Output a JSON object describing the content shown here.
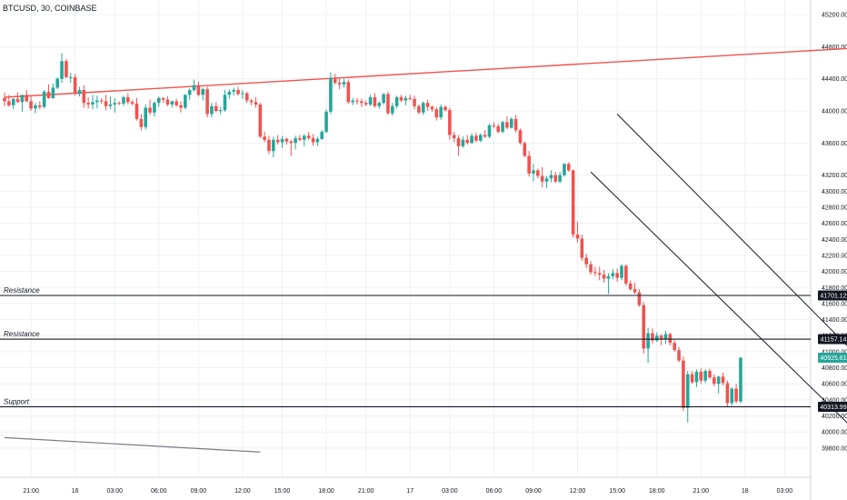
{
  "header": {
    "symbol": "BTCUSD, 30, COINBASE"
  },
  "chart_data": {
    "type": "candlestick",
    "title": "BTCUSD, 30, COINBASE",
    "price_axis": {
      "ticks": [
        45200,
        44800,
        44400,
        44000,
        43600,
        43200,
        43000,
        42800,
        42600,
        42400,
        42200,
        42000,
        41800,
        41600,
        41400,
        41200,
        41000,
        40800,
        40600,
        40400,
        40200,
        40000,
        39800
      ],
      "tick_labels": [
        "45200.00",
        "44800.00",
        "44400.00",
        "44000.00",
        "43600.00",
        "43200.00",
        "43000.00",
        "42800.00",
        "42600.00",
        "42400.00",
        "42200.00",
        "42000.00",
        "41800.00",
        "41600.00",
        "41400.00",
        "41200.00",
        "41000.00",
        "40800.00",
        "40600.00",
        "40400.00",
        "40200.00",
        "40000.00",
        "39800.00"
      ]
    },
    "time_axis": {
      "labels": [
        "21:00",
        "16",
        "03:00",
        "06:00",
        "09:00",
        "12:00",
        "15:00",
        "18:00",
        "21:00",
        "17",
        "03:00",
        "06:00",
        "09:00",
        "12:00",
        "15:00",
        "18:00",
        "21:00",
        "18",
        "03:00"
      ],
      "bar_index": [
        6,
        16,
        25,
        35,
        44,
        54,
        63,
        73,
        82,
        92,
        101,
        111,
        120,
        130,
        139,
        148,
        158,
        168,
        177
      ]
    },
    "colors": {
      "up": "#26a69a",
      "down": "#ef5350",
      "trendline": "#ef5350",
      "channel": "#131722",
      "level": "#131722"
    },
    "candles": [
      [
        44160,
        44230,
        44060,
        44120
      ],
      [
        44120,
        44200,
        44050,
        44070
      ],
      [
        44070,
        44160,
        44020,
        44150
      ],
      [
        44150,
        44230,
        44100,
        44110
      ],
      [
        44110,
        44200,
        43990,
        44200
      ],
      [
        44200,
        44260,
        44110,
        44120
      ],
      [
        44120,
        44180,
        44000,
        44030
      ],
      [
        44030,
        44100,
        43970,
        44070
      ],
      [
        44070,
        44120,
        44020,
        44050
      ],
      [
        44050,
        44260,
        44030,
        44240
      ],
      [
        44240,
        44330,
        44150,
        44160
      ],
      [
        44160,
        44340,
        44150,
        44290
      ],
      [
        44290,
        44420,
        44270,
        44400
      ],
      [
        44400,
        44720,
        44350,
        44620
      ],
      [
        44620,
        44650,
        44410,
        44420
      ],
      [
        44420,
        44470,
        44350,
        44420
      ],
      [
        44420,
        44460,
        44190,
        44210
      ],
      [
        44210,
        44300,
        44180,
        44260
      ],
      [
        44260,
        44320,
        44040,
        44100
      ],
      [
        44100,
        44170,
        44030,
        44080
      ],
      [
        44080,
        44200,
        44020,
        44110
      ],
      [
        44110,
        44190,
        44030,
        44130
      ],
      [
        44130,
        44160,
        44090,
        44120
      ],
      [
        44120,
        44200,
        44010,
        44060
      ],
      [
        44060,
        44180,
        44020,
        44080
      ],
      [
        44080,
        44160,
        43980,
        44100
      ],
      [
        44100,
        44120,
        44070,
        44090
      ],
      [
        44090,
        44190,
        44060,
        44170
      ],
      [
        44170,
        44220,
        44080,
        44110
      ],
      [
        44110,
        44140,
        44070,
        44090
      ],
      [
        44090,
        44160,
        43880,
        43900
      ],
      [
        43900,
        43960,
        43760,
        43800
      ],
      [
        43800,
        44080,
        43770,
        44040
      ],
      [
        44040,
        44140,
        43950,
        43980
      ],
      [
        43980,
        44120,
        43930,
        44100
      ],
      [
        44100,
        44180,
        44050,
        44160
      ],
      [
        44160,
        44170,
        44100,
        44140
      ],
      [
        44140,
        44180,
        44060,
        44080
      ],
      [
        44080,
        44130,
        44040,
        44120
      ],
      [
        44120,
        44150,
        44050,
        44070
      ],
      [
        44070,
        44120,
        43980,
        44040
      ],
      [
        44040,
        44210,
        44020,
        44200
      ],
      [
        44200,
        44280,
        44140,
        44260
      ],
      [
        44260,
        44390,
        44240,
        44320
      ],
      [
        44320,
        44370,
        44180,
        44200
      ],
      [
        44200,
        44290,
        44130,
        44270
      ],
      [
        44270,
        44300,
        43920,
        43960
      ],
      [
        43960,
        44100,
        43920,
        44060
      ],
      [
        44060,
        44110,
        43980,
        44000
      ],
      [
        44000,
        44050,
        43960,
        44010
      ],
      [
        44010,
        44260,
        43990,
        44200
      ],
      [
        44200,
        44270,
        44150,
        44240
      ],
      [
        44240,
        44290,
        44190,
        44260
      ],
      [
        44260,
        44300,
        44190,
        44210
      ],
      [
        44210,
        44260,
        44150,
        44220
      ],
      [
        44220,
        44240,
        44100,
        44130
      ],
      [
        44130,
        44150,
        44070,
        44110
      ],
      [
        44110,
        44170,
        44040,
        44080
      ],
      [
        44080,
        44100,
        43660,
        43680
      ],
      [
        43680,
        43740,
        43610,
        43640
      ],
      [
        43640,
        43690,
        43460,
        43500
      ],
      [
        43500,
        43680,
        43420,
        43640
      ],
      [
        43640,
        43700,
        43580,
        43610
      ],
      [
        43610,
        43690,
        43540,
        43650
      ],
      [
        43650,
        43670,
        43580,
        43620
      ],
      [
        43620,
        43640,
        43440,
        43600
      ],
      [
        43600,
        43690,
        43520,
        43660
      ],
      [
        43660,
        43700,
        43620,
        43640
      ],
      [
        43640,
        43710,
        43560,
        43690
      ],
      [
        43690,
        43740,
        43640,
        43660
      ],
      [
        43660,
        43710,
        43570,
        43610
      ],
      [
        43610,
        43680,
        43560,
        43650
      ],
      [
        43650,
        43760,
        43640,
        43740
      ],
      [
        43740,
        44020,
        43720,
        43990
      ],
      [
        43990,
        44480,
        43960,
        44410
      ],
      [
        44410,
        44460,
        44330,
        44350
      ],
      [
        44350,
        44410,
        44270,
        44330
      ],
      [
        44330,
        44400,
        44290,
        44360
      ],
      [
        44360,
        44390,
        44090,
        44110
      ],
      [
        44110,
        44160,
        44070,
        44130
      ],
      [
        44130,
        44160,
        44080,
        44120
      ],
      [
        44120,
        44150,
        44050,
        44100
      ],
      [
        44100,
        44130,
        44060,
        44080
      ],
      [
        44080,
        44200,
        44060,
        44170
      ],
      [
        44170,
        44220,
        44040,
        44060
      ],
      [
        44060,
        44120,
        44030,
        44100
      ],
      [
        44100,
        44220,
        44080,
        44210
      ],
      [
        44210,
        44240,
        43950,
        43970
      ],
      [
        43970,
        44100,
        43940,
        44060
      ],
      [
        44060,
        44190,
        44030,
        44170
      ],
      [
        44170,
        44200,
        44110,
        44130
      ],
      [
        44130,
        44190,
        44070,
        44160
      ],
      [
        44160,
        44200,
        44130,
        44150
      ],
      [
        44150,
        44190,
        44020,
        44060
      ],
      [
        44060,
        44080,
        43960,
        43980
      ],
      [
        43980,
        44120,
        43950,
        44100
      ],
      [
        44100,
        44140,
        44000,
        44050
      ],
      [
        44050,
        44070,
        43990,
        44020
      ],
      [
        44020,
        44050,
        43880,
        43920
      ],
      [
        43920,
        44080,
        43890,
        44050
      ],
      [
        44050,
        44070,
        43990,
        44010
      ],
      [
        44010,
        44040,
        43640,
        43700
      ],
      [
        43700,
        43740,
        43610,
        43660
      ],
      [
        43660,
        43700,
        43440,
        43560
      ],
      [
        43560,
        43680,
        43540,
        43640
      ],
      [
        43640,
        43700,
        43580,
        43600
      ],
      [
        43600,
        43720,
        43590,
        43690
      ],
      [
        43690,
        43730,
        43610,
        43630
      ],
      [
        43630,
        43720,
        43610,
        43700
      ],
      [
        43700,
        43760,
        43660,
        43680
      ],
      [
        43680,
        43840,
        43660,
        43820
      ],
      [
        43820,
        43860,
        43780,
        43810
      ],
      [
        43810,
        43840,
        43720,
        43740
      ],
      [
        43740,
        43880,
        43720,
        43860
      ],
      [
        43860,
        43930,
        43770,
        43790
      ],
      [
        43790,
        43920,
        43780,
        43900
      ],
      [
        43900,
        43950,
        43730,
        43760
      ],
      [
        43760,
        43780,
        43580,
        43600
      ],
      [
        43600,
        43620,
        43420,
        43440
      ],
      [
        43440,
        43500,
        43180,
        43220
      ],
      [
        43220,
        43340,
        43120,
        43260
      ],
      [
        43260,
        43280,
        43160,
        43190
      ],
      [
        43190,
        43300,
        43050,
        43120
      ],
      [
        43120,
        43190,
        43040,
        43160
      ],
      [
        43160,
        43260,
        43110,
        43200
      ],
      [
        43200,
        43240,
        43100,
        43120
      ],
      [
        43120,
        43240,
        43100,
        43200
      ],
      [
        43200,
        43350,
        43180,
        43340
      ],
      [
        43340,
        43360,
        43240,
        43260
      ],
      [
        43260,
        43270,
        42420,
        42460
      ],
      [
        42460,
        42620,
        42360,
        42410
      ],
      [
        42410,
        42460,
        42130,
        42170
      ],
      [
        42170,
        42220,
        42040,
        42090
      ],
      [
        42090,
        42130,
        41960,
        41990
      ],
      [
        41990,
        42060,
        41940,
        41980
      ],
      [
        41980,
        42060,
        41890,
        41960
      ],
      [
        41960,
        42020,
        41860,
        41910
      ],
      [
        41910,
        41980,
        41720,
        41940
      ],
      [
        41940,
        42030,
        41900,
        41980
      ],
      [
        41980,
        42040,
        41870,
        41920
      ],
      [
        41920,
        42090,
        41890,
        42070
      ],
      [
        42070,
        42090,
        41820,
        41850
      ],
      [
        41850,
        41890,
        41760,
        41780
      ],
      [
        41780,
        41860,
        41720,
        41740
      ],
      [
        41740,
        41780,
        41560,
        41580
      ],
      [
        41580,
        41620,
        40980,
        41040
      ],
      [
        41040,
        41300,
        40860,
        41230
      ],
      [
        41230,
        41290,
        41100,
        41140
      ],
      [
        41140,
        41240,
        41120,
        41200
      ],
      [
        41200,
        41220,
        41080,
        41160
      ],
      [
        41160,
        41260,
        41100,
        41220
      ],
      [
        41220,
        41240,
        41080,
        41110
      ],
      [
        41110,
        41140,
        41000,
        41020
      ],
      [
        41020,
        41060,
        40870,
        40890
      ],
      [
        40890,
        40940,
        40260,
        40300
      ],
      [
        40300,
        40760,
        40120,
        40720
      ],
      [
        40720,
        40760,
        40600,
        40620
      ],
      [
        40620,
        40780,
        40560,
        40750
      ],
      [
        40750,
        40790,
        40600,
        40640
      ],
      [
        40640,
        40780,
        40610,
        40760
      ],
      [
        40760,
        40790,
        40660,
        40680
      ],
      [
        40680,
        40720,
        40570,
        40600
      ],
      [
        40600,
        40700,
        40480,
        40690
      ],
      [
        40690,
        40740,
        40580,
        40610
      ],
      [
        40610,
        40640,
        40320,
        40360
      ],
      [
        40360,
        40560,
        40330,
        40540
      ],
      [
        40540,
        40600,
        40360,
        40380
      ],
      [
        40380,
        40930,
        40360,
        40925.61
      ]
    ],
    "trendline": {
      "from": [
        0,
        44170
      ],
      "to": [
        211,
        44840
      ]
    },
    "down_channel": {
      "upper": {
        "from": [
          139,
          43960
        ],
        "to": [
          207,
          40200
        ]
      },
      "lower": {
        "from": [
          133,
          43240
        ],
        "to": [
          203,
          39480
        ]
      }
    },
    "lower_line": {
      "from": [
        0,
        39930
      ],
      "to": [
        58,
        39750
      ]
    },
    "projection_arrow": {
      "from": [
        203,
        40925.61
      ],
      "to": [
        208,
        41701.12
      ]
    },
    "levels": [
      {
        "label": "Resistance",
        "price": 41701.12,
        "badge": "41701.12"
      },
      {
        "label": "Resistance",
        "price": 41157.14,
        "badge": "41157.14"
      },
      {
        "label": "Support",
        "price": 40313.99,
        "badge": "40313.99"
      }
    ],
    "last_price": {
      "value": 40925.61,
      "badge": "40925.61"
    }
  }
}
